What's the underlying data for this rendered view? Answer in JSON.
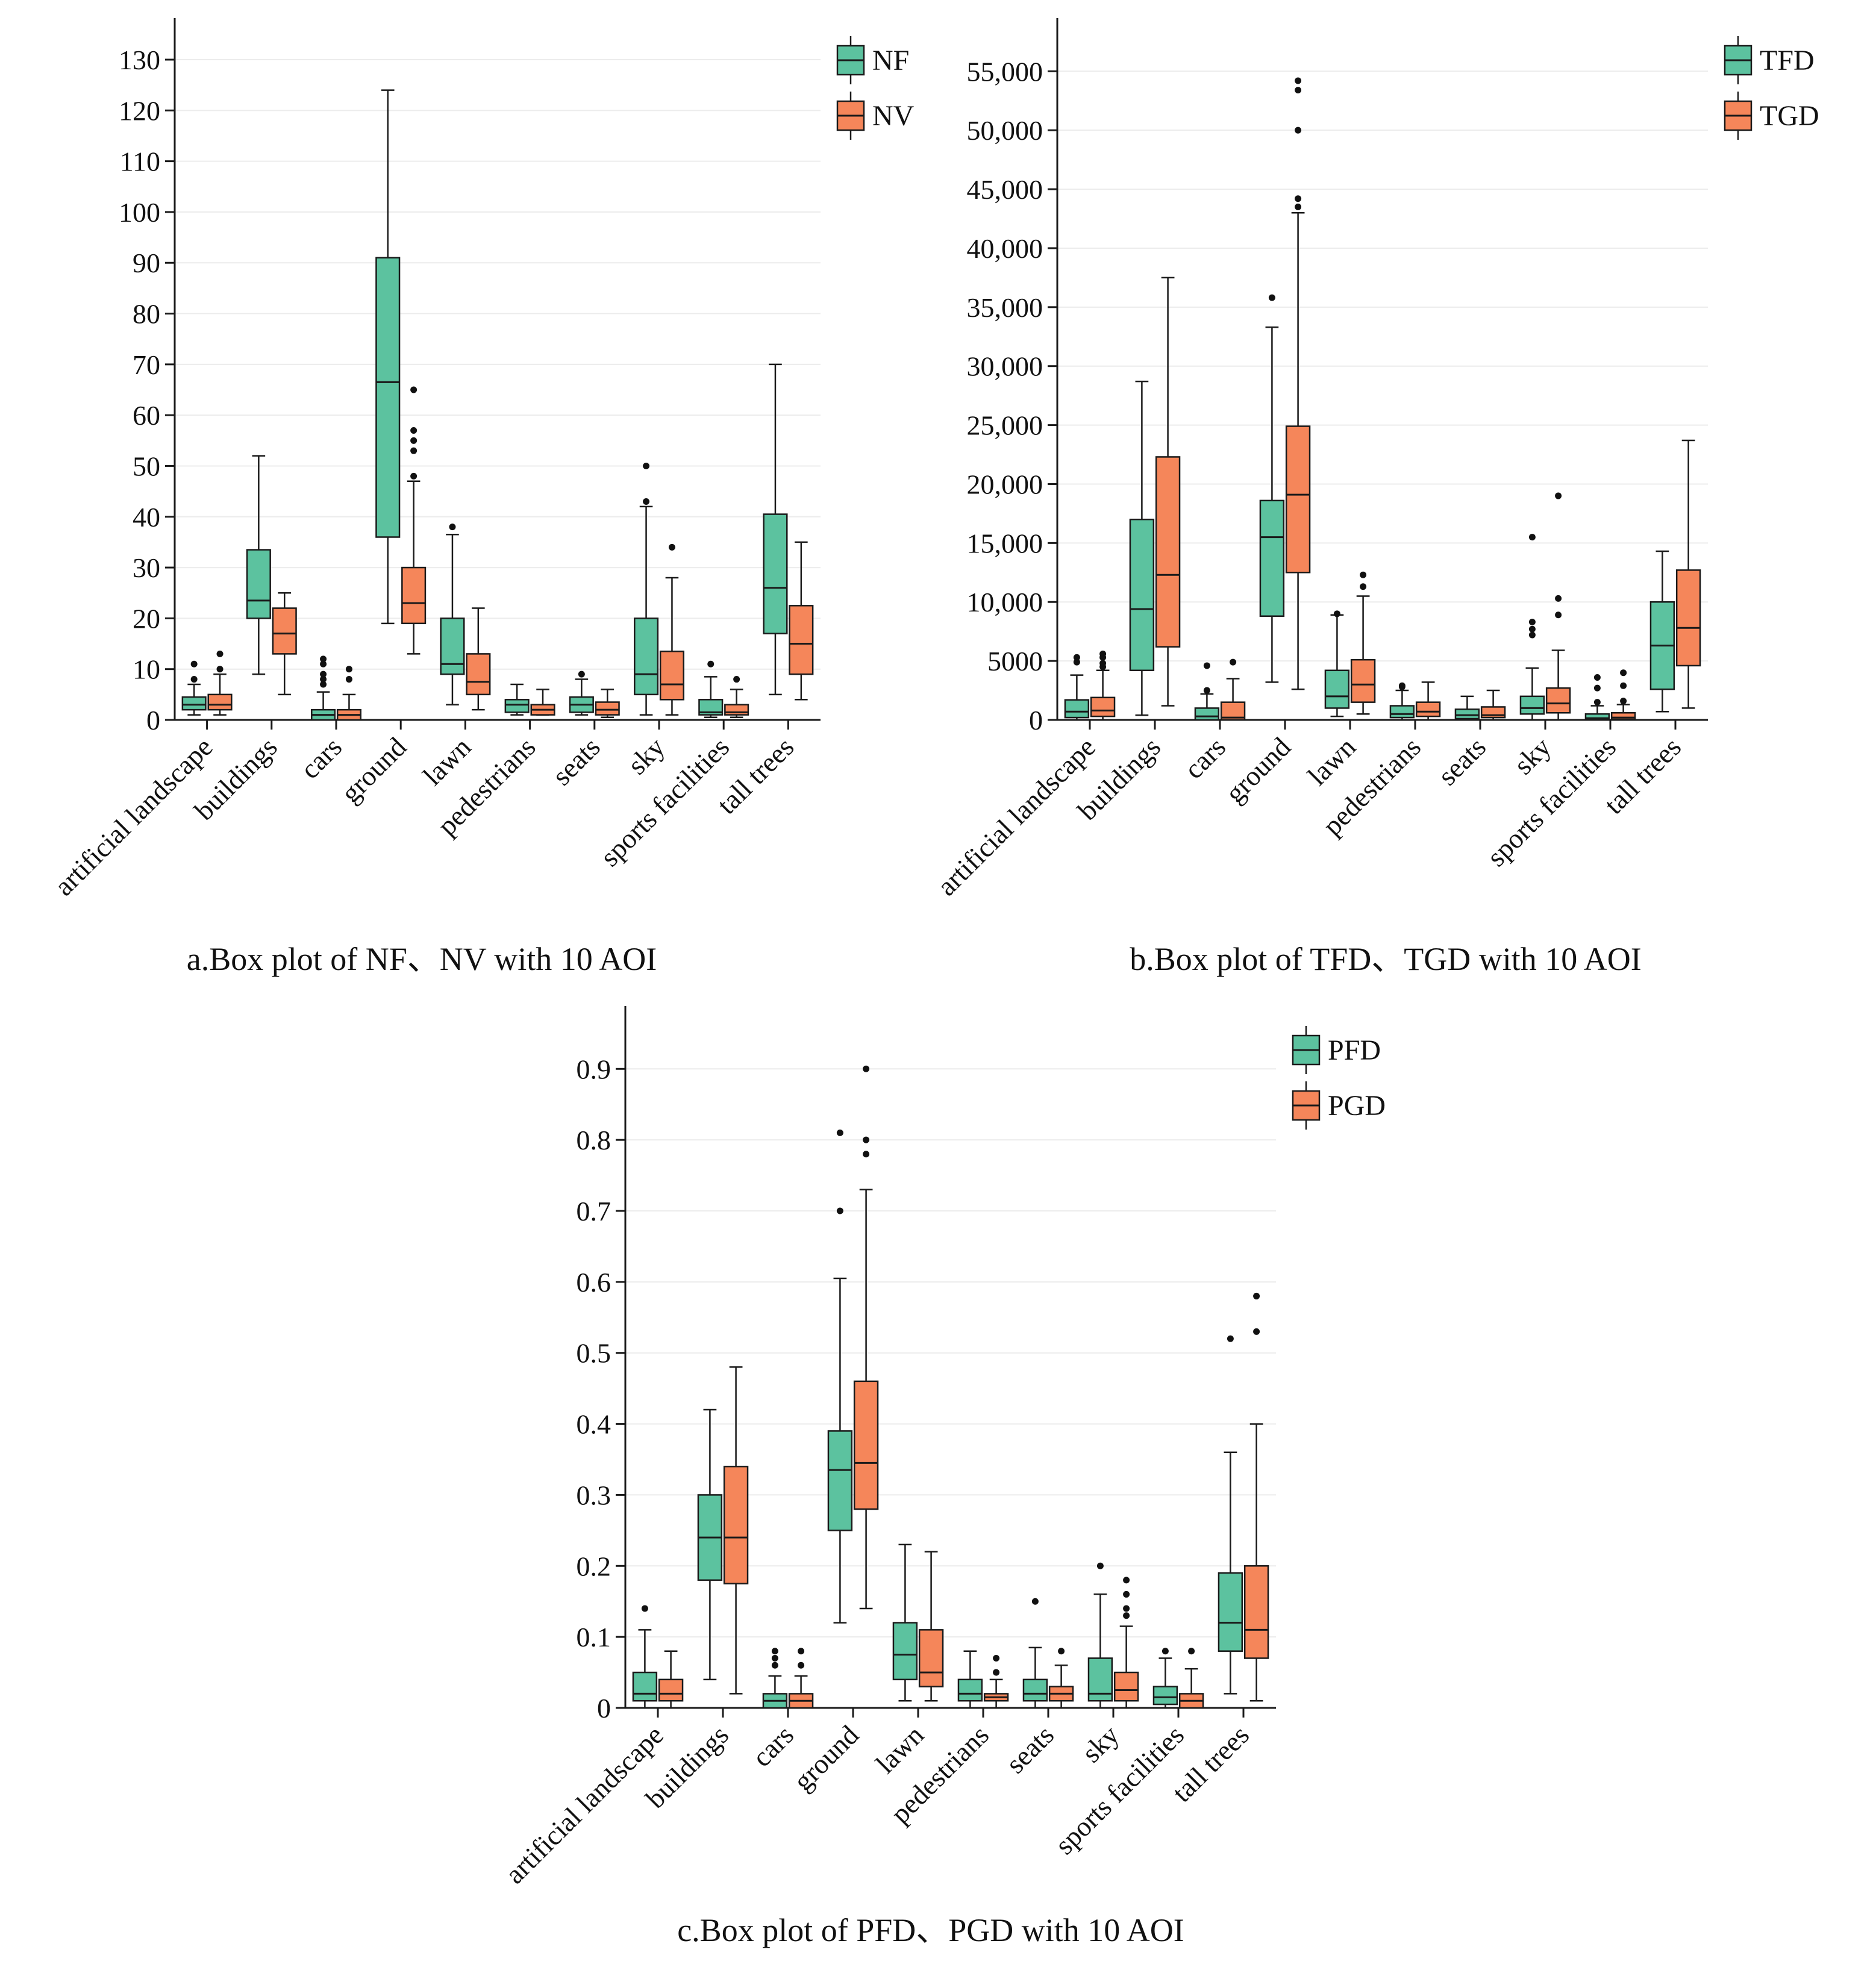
{
  "colors": {
    "series_a": "#5cc29f",
    "series_b": "#f5865a",
    "stroke": "#1a1a1a",
    "grid": "#ececec"
  },
  "chart_data": [
    {
      "id": "a",
      "type": "box",
      "caption": "a.Box plot of NF、NV with 10 AOI",
      "categories": [
        "artificial landscape",
        "buildings",
        "cars",
        "ground",
        "lawn",
        "pedestrians",
        "seats",
        "sky",
        "sports facilities",
        "tall trees"
      ],
      "ylim": [
        0,
        137
      ],
      "yticks": [
        0,
        10,
        20,
        30,
        40,
        50,
        60,
        70,
        80,
        90,
        100,
        110,
        120,
        130
      ],
      "yticklabels": [
        "0",
        "10",
        "20",
        "30",
        "40",
        "50",
        "60",
        "70",
        "80",
        "90",
        "100",
        "110",
        "120",
        "130"
      ],
      "series": [
        {
          "name": "NF",
          "boxes": [
            {
              "min": 1,
              "q1": 2,
              "median": 3,
              "q3": 4.5,
              "max": 7,
              "outliers": [
                8,
                11
              ]
            },
            {
              "min": 9,
              "q1": 20,
              "median": 23.5,
              "q3": 33.5,
              "max": 52,
              "outliers": []
            },
            {
              "min": 0,
              "q1": 0,
              "median": 1,
              "q3": 2,
              "max": 5.5,
              "outliers": [
                7,
                8,
                9,
                11,
                12
              ]
            },
            {
              "min": 19,
              "q1": 36,
              "median": 66.5,
              "q3": 91,
              "max": 124,
              "outliers": []
            },
            {
              "min": 3,
              "q1": 9,
              "median": 11,
              "q3": 20,
              "max": 36.5,
              "outliers": [
                38
              ]
            },
            {
              "min": 1,
              "q1": 1.5,
              "median": 3,
              "q3": 4,
              "max": 7,
              "outliers": []
            },
            {
              "min": 1,
              "q1": 1.5,
              "median": 3,
              "q3": 4.5,
              "max": 8,
              "outliers": [
                9
              ]
            },
            {
              "min": 1,
              "q1": 5,
              "median": 9,
              "q3": 20,
              "max": 42,
              "outliers": [
                43,
                50
              ]
            },
            {
              "min": 0.5,
              "q1": 1,
              "median": 1.5,
              "q3": 4,
              "max": 8.5,
              "outliers": [
                11
              ]
            },
            {
              "min": 5,
              "q1": 17,
              "median": 26,
              "q3": 40.5,
              "max": 70,
              "outliers": []
            }
          ]
        },
        {
          "name": "NV",
          "boxes": [
            {
              "min": 1,
              "q1": 2,
              "median": 3,
              "q3": 5,
              "max": 9,
              "outliers": [
                10,
                13
              ]
            },
            {
              "min": 5,
              "q1": 13,
              "median": 17,
              "q3": 22,
              "max": 25,
              "outliers": []
            },
            {
              "min": 0,
              "q1": 0,
              "median": 1,
              "q3": 2,
              "max": 5,
              "outliers": [
                8,
                10
              ]
            },
            {
              "min": 13,
              "q1": 19,
              "median": 23,
              "q3": 30,
              "max": 47,
              "outliers": [
                48,
                53,
                55,
                57,
                65
              ]
            },
            {
              "min": 2,
              "q1": 5,
              "median": 7.5,
              "q3": 13,
              "max": 22,
              "outliers": []
            },
            {
              "min": 1,
              "q1": 1,
              "median": 2,
              "q3": 3,
              "max": 6,
              "outliers": []
            },
            {
              "min": 0.5,
              "q1": 1,
              "median": 2,
              "q3": 3.5,
              "max": 6,
              "outliers": []
            },
            {
              "min": 1,
              "q1": 4,
              "median": 7,
              "q3": 13.5,
              "max": 28,
              "outliers": [
                34
              ]
            },
            {
              "min": 0.5,
              "q1": 1,
              "median": 1.5,
              "q3": 3,
              "max": 6,
              "outliers": [
                8
              ]
            },
            {
              "min": 4,
              "q1": 9,
              "median": 15,
              "q3": 22.5,
              "max": 35,
              "outliers": []
            }
          ]
        }
      ]
    },
    {
      "id": "b",
      "type": "box",
      "caption": "b.Box plot of TFD、TGD with 10 AOI",
      "categories": [
        "artificial landscape",
        "buildings",
        "cars",
        "ground",
        "lawn",
        "pedestrians",
        "seats",
        "sky",
        "sports facilities",
        "tall trees"
      ],
      "ylim": [
        0,
        59000
      ],
      "yticks": [
        0,
        5000,
        10000,
        15000,
        20000,
        25000,
        30000,
        35000,
        40000,
        45000,
        50000,
        55000
      ],
      "yticklabels": [
        "0",
        "5000",
        "10,000",
        "15,000",
        "20,000",
        "25,000",
        "30,000",
        "35,000",
        "40,000",
        "45,000",
        "50,000",
        "55,000"
      ],
      "series": [
        {
          "name": "TFD",
          "boxes": [
            {
              "min": 0,
              "q1": 200,
              "median": 700,
              "q3": 1700,
              "max": 3800,
              "outliers": [
                4900,
                5300
              ]
            },
            {
              "min": 400,
              "q1": 4200,
              "median": 9400,
              "q3": 17000,
              "max": 28700,
              "outliers": []
            },
            {
              "min": 0,
              "q1": 0,
              "median": 300,
              "q3": 1000,
              "max": 2200,
              "outliers": [
                2500,
                4600
              ]
            },
            {
              "min": 3200,
              "q1": 8800,
              "median": 15500,
              "q3": 18600,
              "max": 33300,
              "outliers": [
                35800
              ]
            },
            {
              "min": 300,
              "q1": 1000,
              "median": 2000,
              "q3": 4200,
              "max": 8900,
              "outliers": [
                9000
              ]
            },
            {
              "min": 0,
              "q1": 200,
              "median": 500,
              "q3": 1200,
              "max": 2500,
              "outliers": [
                2800,
                2900
              ]
            },
            {
              "min": 0,
              "q1": 100,
              "median": 400,
              "q3": 900,
              "max": 2000,
              "outliers": []
            },
            {
              "min": 0,
              "q1": 500,
              "median": 1000,
              "q3": 2000,
              "max": 4400,
              "outliers": [
                7200,
                7700,
                8300,
                15500
              ]
            },
            {
              "min": 0,
              "q1": 50,
              "median": 150,
              "q3": 500,
              "max": 1200,
              "outliers": [
                1500,
                2700,
                3600
              ]
            },
            {
              "min": 700,
              "q1": 2600,
              "median": 6300,
              "q3": 10000,
              "max": 14300,
              "outliers": []
            }
          ]
        },
        {
          "name": "TGD",
          "boxes": [
            {
              "min": 0,
              "q1": 300,
              "median": 800,
              "q3": 1900,
              "max": 4200,
              "outliers": [
                4500,
                4800,
                5300,
                5600
              ]
            },
            {
              "min": 1200,
              "q1": 6200,
              "median": 12300,
              "q3": 22300,
              "max": 37500,
              "outliers": []
            },
            {
              "min": 0,
              "q1": 0,
              "median": 200,
              "q3": 1500,
              "max": 3500,
              "outliers": [
                4900
              ]
            },
            {
              "min": 2600,
              "q1": 12500,
              "median": 19100,
              "q3": 24900,
              "max": 43000,
              "outliers": [
                43500,
                44200,
                50000,
                53400,
                54200
              ]
            },
            {
              "min": 500,
              "q1": 1500,
              "median": 3000,
              "q3": 5100,
              "max": 10500,
              "outliers": [
                11300,
                12300
              ]
            },
            {
              "min": 0,
              "q1": 300,
              "median": 700,
              "q3": 1500,
              "max": 3200,
              "outliers": []
            },
            {
              "min": 0,
              "q1": 200,
              "median": 400,
              "q3": 1100,
              "max": 2500,
              "outliers": []
            },
            {
              "min": 0,
              "q1": 600,
              "median": 1400,
              "q3": 2700,
              "max": 5900,
              "outliers": [
                8900,
                10300,
                19000
              ]
            },
            {
              "min": 0,
              "q1": 50,
              "median": 200,
              "q3": 600,
              "max": 1300,
              "outliers": [
                1600,
                2900,
                4000
              ]
            },
            {
              "min": 1000,
              "q1": 4600,
              "median": 7800,
              "q3": 12700,
              "max": 23700,
              "outliers": []
            }
          ]
        }
      ]
    },
    {
      "id": "c",
      "type": "box",
      "caption": "c.Box plot of PFD、PGD with 10 AOI",
      "categories": [
        "artificial landscape",
        "buildings",
        "cars",
        "ground",
        "lawn",
        "pedestrians",
        "seats",
        "sky",
        "sports facilities",
        "tall trees"
      ],
      "ylim": [
        0,
        0.98
      ],
      "yticks": [
        0,
        0.1,
        0.2,
        0.3,
        0.4,
        0.5,
        0.6,
        0.7,
        0.8,
        0.9
      ],
      "yticklabels": [
        "0",
        "0.1",
        "0.2",
        "0.3",
        "0.4",
        "0.5",
        "0.6",
        "0.7",
        "0.8",
        "0.9"
      ],
      "series": [
        {
          "name": "PFD",
          "boxes": [
            {
              "min": 0,
              "q1": 0.01,
              "median": 0.02,
              "q3": 0.05,
              "max": 0.11,
              "outliers": [
                0.14
              ]
            },
            {
              "min": 0.04,
              "q1": 0.18,
              "median": 0.24,
              "q3": 0.3,
              "max": 0.42,
              "outliers": []
            },
            {
              "min": 0,
              "q1": 0,
              "median": 0.01,
              "q3": 0.02,
              "max": 0.045,
              "outliers": [
                0.06,
                0.07,
                0.08
              ]
            },
            {
              "min": 0.12,
              "q1": 0.25,
              "median": 0.335,
              "q3": 0.39,
              "max": 0.605,
              "outliers": [
                0.7,
                0.81
              ]
            },
            {
              "min": 0.01,
              "q1": 0.04,
              "median": 0.075,
              "q3": 0.12,
              "max": 0.23,
              "outliers": []
            },
            {
              "min": 0,
              "q1": 0.01,
              "median": 0.02,
              "q3": 0.04,
              "max": 0.08,
              "outliers": []
            },
            {
              "min": 0,
              "q1": 0.01,
              "median": 0.02,
              "q3": 0.04,
              "max": 0.085,
              "outliers": [
                0.15
              ]
            },
            {
              "min": 0,
              "q1": 0.01,
              "median": 0.02,
              "q3": 0.07,
              "max": 0.16,
              "outliers": [
                0.2
              ]
            },
            {
              "min": 0,
              "q1": 0.005,
              "median": 0.015,
              "q3": 0.03,
              "max": 0.07,
              "outliers": [
                0.08
              ]
            },
            {
              "min": 0.02,
              "q1": 0.08,
              "median": 0.12,
              "q3": 0.19,
              "max": 0.36,
              "outliers": [
                0.52
              ]
            }
          ]
        },
        {
          "name": "PGD",
          "boxes": [
            {
              "min": 0,
              "q1": 0.01,
              "median": 0.02,
              "q3": 0.04,
              "max": 0.08,
              "outliers": []
            },
            {
              "min": 0.02,
              "q1": 0.175,
              "median": 0.24,
              "q3": 0.34,
              "max": 0.48,
              "outliers": []
            },
            {
              "min": 0,
              "q1": 0,
              "median": 0.01,
              "q3": 0.02,
              "max": 0.045,
              "outliers": [
                0.06,
                0.08
              ]
            },
            {
              "min": 0.14,
              "q1": 0.28,
              "median": 0.345,
              "q3": 0.46,
              "max": 0.73,
              "outliers": [
                0.78,
                0.8,
                0.9
              ]
            },
            {
              "min": 0.01,
              "q1": 0.03,
              "median": 0.05,
              "q3": 0.11,
              "max": 0.22,
              "outliers": []
            },
            {
              "min": 0,
              "q1": 0.01,
              "median": 0.015,
              "q3": 0.02,
              "max": 0.04,
              "outliers": [
                0.05,
                0.07
              ]
            },
            {
              "min": 0,
              "q1": 0.01,
              "median": 0.02,
              "q3": 0.03,
              "max": 0.06,
              "outliers": [
                0.08
              ]
            },
            {
              "min": 0,
              "q1": 0.01,
              "median": 0.025,
              "q3": 0.05,
              "max": 0.115,
              "outliers": [
                0.13,
                0.14,
                0.16,
                0.18
              ]
            },
            {
              "min": 0,
              "q1": 0,
              "median": 0.01,
              "q3": 0.02,
              "max": 0.055,
              "outliers": [
                0.08
              ]
            },
            {
              "min": 0.01,
              "q1": 0.07,
              "median": 0.11,
              "q3": 0.2,
              "max": 0.4,
              "outliers": [
                0.53,
                0.58
              ]
            }
          ]
        }
      ]
    }
  ]
}
